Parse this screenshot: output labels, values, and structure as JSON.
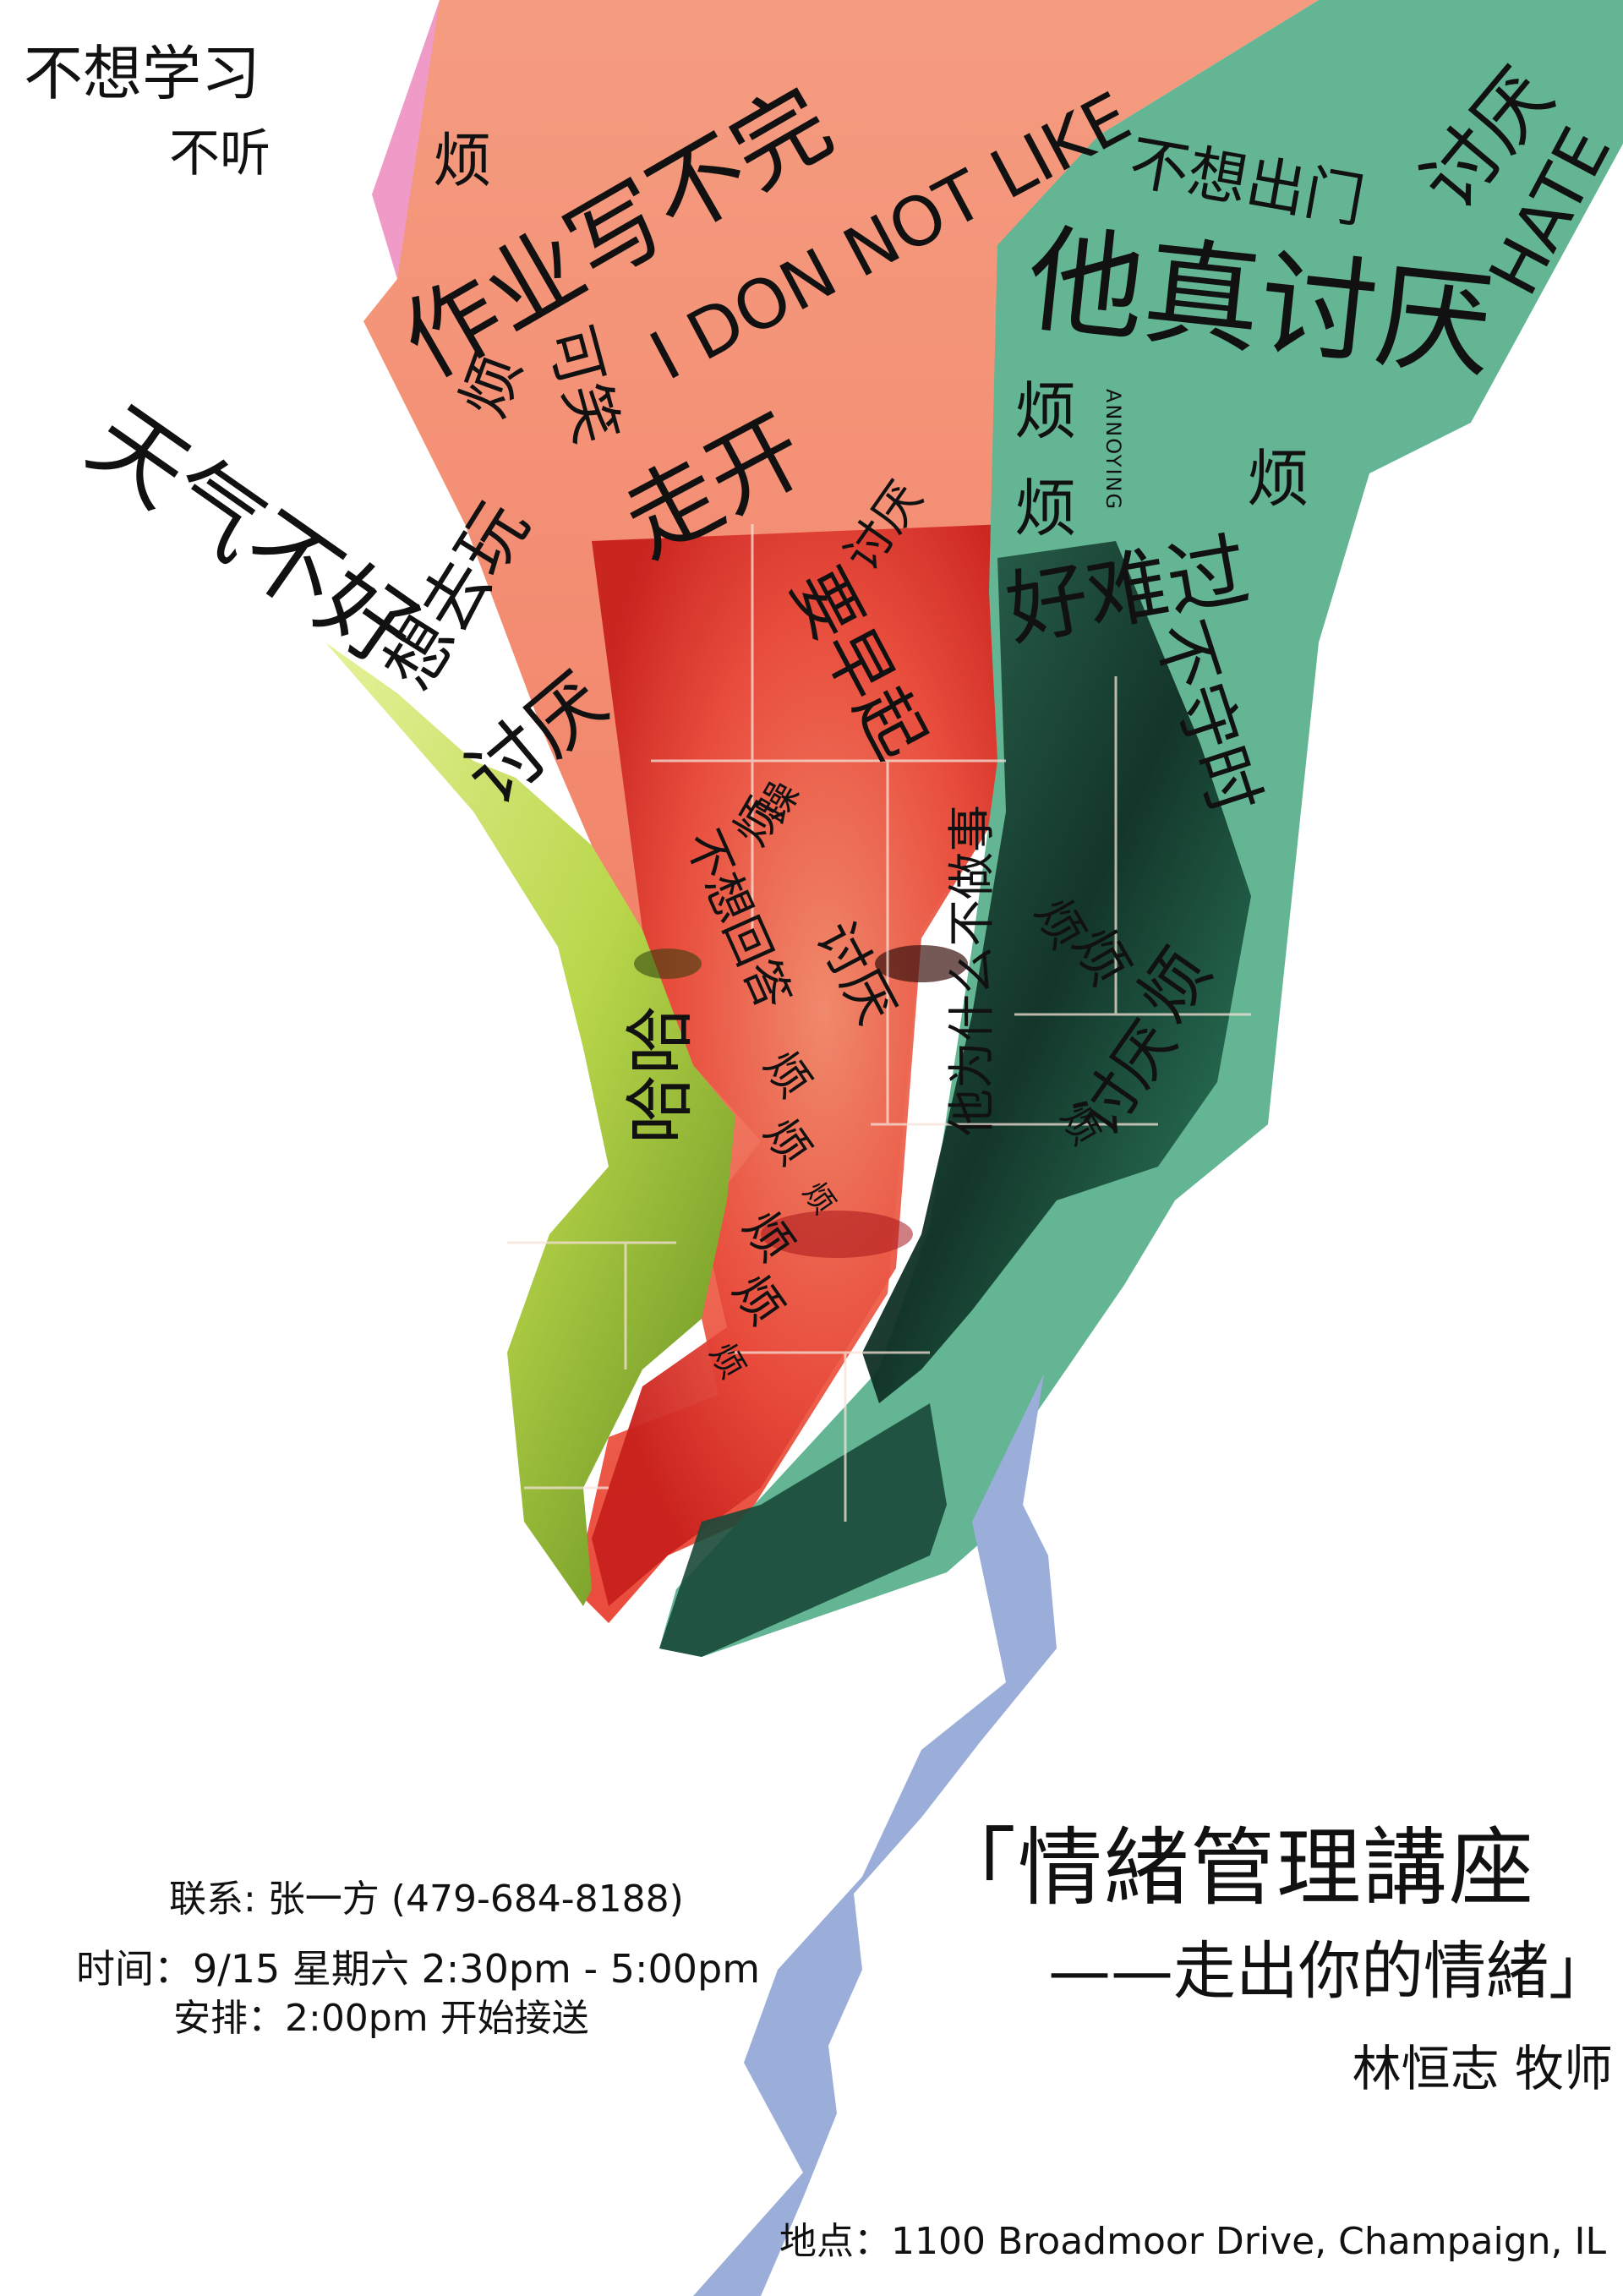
{
  "poster": {
    "colors": {
      "salmon": "#f59c80",
      "red": "#ee3b34",
      "green": "#63b594",
      "dark_green": "#1d4f3c",
      "lime": "#d6ea6a",
      "blue": "#9badd9",
      "pink": "#f09ac8"
    },
    "photo_description_icon": "face-photo-collage",
    "words": {
      "w1": "不想学习",
      "w2": "不听",
      "w3": "烦",
      "w4": "作业写不完",
      "w5": "I DON NOT LIKE",
      "w6": "不想出门",
      "w7": "讨厌",
      "w8": "HATE",
      "w9": "他真讨厌",
      "w10": "烦",
      "w11": "可笑",
      "w12": "走开",
      "w13": "天气不好",
      "w14": "想去玩",
      "w15": "讨厌",
      "w16": "烦",
      "w17": "ANNOYING",
      "w18": "烦",
      "w19": "烦",
      "w20": "讨厌",
      "w21": "要早起",
      "w22": "好难过",
      "w23": "不守时",
      "w24": "讨厌",
      "w25": "躁",
      "w26": "烦",
      "w27": "不想回答",
      "w28": "他为什么不做事",
      "w29": "烦",
      "w30": "烦",
      "w31": "烦",
      "w32": "讨厌",
      "w33": "哈哈",
      "w34": "烦",
      "w35": "烦",
      "w36": "烦",
      "w37": "烦",
      "w38": "烦",
      "w39": "烦",
      "w40": "烦"
    },
    "title_line1": "「情緒管理講座",
    "title_line2": "——走出你的情緒」",
    "speaker": "林恒志 牧师",
    "contact": "联系: 张一方 (479-684-8188)",
    "time": "时间：9/15 星期六 2:30pm - 5:00pm",
    "arrangement": "安排：2:00pm 开始接送",
    "location": "地点：1100 Broadmoor Drive, Champaign, IL"
  }
}
